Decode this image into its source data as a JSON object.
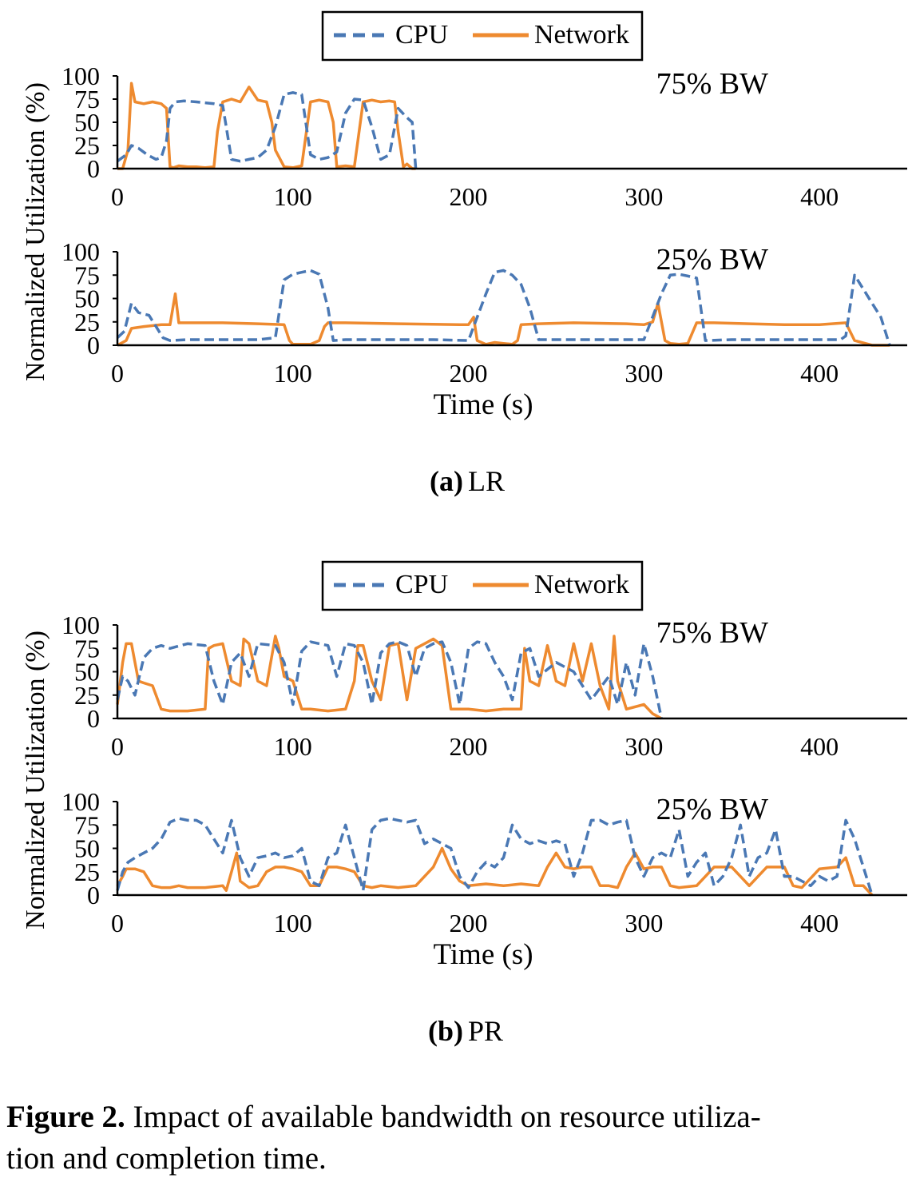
{
  "figure": {
    "caption_label": "Figure 2.",
    "caption_text": "Impact of available bandwidth on resource utilization and completion time.",
    "caption_line1": "Impact of available bandwidth on resource utiliza-",
    "caption_line2": "tion and completion time."
  },
  "colors": {
    "cpu": "#4A78B4",
    "network": "#EE8A2F"
  },
  "panels": [
    {
      "label": "(a)",
      "name": "LR",
      "legend": [
        "CPU",
        "Network"
      ],
      "ylabel": "Normalized Utilization (%)",
      "xlabel": "Time (s)"
    },
    {
      "label": "(b)",
      "name": "PR",
      "legend": [
        "CPU",
        "Network"
      ],
      "ylabel": "Normalized Utilization (%)",
      "xlabel": "Time (s)"
    }
  ],
  "chart_data": [
    {
      "type": "line",
      "panel": "(a) LR",
      "annotation": "75% BW",
      "xlim": [
        0,
        450
      ],
      "ylim": [
        0,
        100
      ],
      "xticks": [
        0,
        100,
        200,
        300,
        400
      ],
      "yticks": [
        0,
        25,
        50,
        75,
        100
      ],
      "grid": false,
      "legend_position": "top-center",
      "series": [
        {
          "name": "CPU",
          "style": "dashed",
          "x": [
            0,
            5,
            8,
            12,
            17,
            22,
            25,
            28,
            30,
            33,
            38,
            45,
            55,
            60,
            62,
            65,
            70,
            75,
            80,
            85,
            90,
            95,
            100,
            105,
            110,
            115,
            120,
            125,
            130,
            135,
            140,
            145,
            150,
            155,
            160,
            165,
            168,
            170
          ],
          "y": [
            8,
            15,
            25,
            22,
            15,
            10,
            12,
            30,
            65,
            72,
            73,
            72,
            70,
            68,
            45,
            10,
            8,
            10,
            12,
            20,
            45,
            80,
            82,
            80,
            15,
            10,
            12,
            18,
            60,
            75,
            74,
            45,
            10,
            15,
            65,
            55,
            50,
            0
          ]
        },
        {
          "name": "Network",
          "style": "solid",
          "x": [
            0,
            3,
            6,
            8,
            10,
            15,
            20,
            25,
            28,
            30,
            32,
            35,
            40,
            45,
            50,
            55,
            57,
            60,
            65,
            70,
            75,
            80,
            85,
            88,
            90,
            95,
            100,
            105,
            110,
            115,
            120,
            123,
            125,
            130,
            135,
            140,
            145,
            150,
            155,
            158,
            160,
            163,
            165,
            168,
            170
          ],
          "y": [
            0,
            0,
            20,
            92,
            72,
            70,
            72,
            70,
            65,
            2,
            1,
            3,
            2,
            2,
            1,
            2,
            40,
            72,
            75,
            72,
            88,
            74,
            72,
            50,
            20,
            2,
            1,
            3,
            72,
            74,
            72,
            50,
            2,
            3,
            2,
            72,
            74,
            72,
            73,
            72,
            40,
            2,
            5,
            0,
            0
          ]
        }
      ]
    },
    {
      "type": "line",
      "panel": "(a) LR",
      "annotation": "25% BW",
      "xlim": [
        0,
        450
      ],
      "ylim": [
        0,
        100
      ],
      "xticks": [
        0,
        100,
        200,
        300,
        400
      ],
      "yticks": [
        0,
        25,
        50,
        75,
        100
      ],
      "grid": false,
      "series": [
        {
          "name": "CPU",
          "style": "dashed",
          "x": [
            0,
            4,
            8,
            12,
            18,
            22,
            26,
            30,
            40,
            60,
            80,
            90,
            95,
            100,
            105,
            110,
            115,
            120,
            123,
            130,
            150,
            180,
            200,
            210,
            215,
            220,
            225,
            230,
            235,
            240,
            260,
            280,
            300,
            310,
            315,
            320,
            325,
            330,
            335,
            350,
            380,
            400,
            412,
            415,
            420,
            425,
            430,
            435,
            440
          ],
          "y": [
            8,
            15,
            45,
            35,
            32,
            20,
            8,
            5,
            6,
            6,
            6,
            8,
            70,
            76,
            78,
            80,
            76,
            40,
            5,
            6,
            6,
            6,
            5,
            55,
            78,
            80,
            75,
            65,
            40,
            6,
            6,
            6,
            6,
            55,
            75,
            76,
            74,
            72,
            5,
            6,
            6,
            6,
            6,
            10,
            75,
            60,
            45,
            30,
            0
          ]
        },
        {
          "name": "Network",
          "style": "solid",
          "x": [
            0,
            5,
            8,
            15,
            25,
            30,
            33,
            35,
            40,
            60,
            80,
            95,
            98,
            100,
            110,
            115,
            118,
            120,
            130,
            160,
            195,
            200,
            203,
            205,
            210,
            215,
            220,
            225,
            228,
            230,
            240,
            260,
            290,
            300,
            305,
            308,
            310,
            312,
            315,
            320,
            325,
            330,
            340,
            360,
            380,
            400,
            415,
            420,
            430,
            440
          ],
          "y": [
            0,
            5,
            18,
            20,
            22,
            22,
            55,
            24,
            24,
            24,
            23,
            22,
            5,
            1,
            1,
            5,
            20,
            24,
            24,
            23,
            22,
            22,
            30,
            5,
            1,
            3,
            2,
            1,
            5,
            22,
            23,
            24,
            23,
            22,
            25,
            45,
            25,
            5,
            2,
            1,
            2,
            24,
            24,
            23,
            22,
            22,
            24,
            5,
            0,
            0
          ]
        }
      ]
    },
    {
      "type": "line",
      "panel": "(b) PR",
      "annotation": "75% BW",
      "xlim": [
        0,
        450
      ],
      "ylim": [
        0,
        100
      ],
      "xticks": [
        0,
        100,
        200,
        300,
        400
      ],
      "yticks": [
        0,
        25,
        50,
        75,
        100
      ],
      "grid": false,
      "legend_position": "top-center",
      "series": [
        {
          "name": "CPU",
          "style": "dashed",
          "x": [
            0,
            3,
            6,
            10,
            15,
            20,
            25,
            30,
            40,
            50,
            55,
            60,
            65,
            70,
            75,
            80,
            90,
            95,
            100,
            105,
            110,
            115,
            120,
            125,
            130,
            135,
            140,
            145,
            150,
            155,
            160,
            165,
            170,
            175,
            180,
            185,
            190,
            195,
            200,
            205,
            210,
            215,
            220,
            225,
            230,
            235,
            240,
            250,
            260,
            270,
            280,
            285,
            290,
            295,
            300,
            305,
            310
          ],
          "y": [
            20,
            45,
            40,
            25,
            65,
            75,
            78,
            75,
            80,
            78,
            40,
            15,
            60,
            70,
            45,
            80,
            78,
            60,
            15,
            72,
            82,
            80,
            78,
            45,
            80,
            78,
            60,
            15,
            70,
            80,
            82,
            78,
            45,
            75,
            80,
            82,
            60,
            15,
            75,
            82,
            80,
            60,
            45,
            20,
            70,
            75,
            45,
            60,
            50,
            20,
            45,
            15,
            60,
            25,
            80,
            45,
            0
          ]
        },
        {
          "name": "Network",
          "style": "solid",
          "x": [
            0,
            3,
            5,
            8,
            10,
            12,
            15,
            20,
            25,
            30,
            40,
            50,
            52,
            55,
            60,
            65,
            70,
            72,
            75,
            80,
            85,
            90,
            92,
            95,
            100,
            105,
            110,
            120,
            130,
            135,
            137,
            140,
            145,
            150,
            155,
            160,
            165,
            170,
            175,
            180,
            185,
            190,
            200,
            210,
            220,
            230,
            232,
            235,
            240,
            245,
            250,
            255,
            260,
            265,
            270,
            275,
            280,
            283,
            285,
            290,
            300,
            305,
            310
          ],
          "y": [
            15,
            60,
            80,
            80,
            60,
            40,
            38,
            35,
            10,
            8,
            8,
            10,
            75,
            78,
            80,
            40,
            35,
            85,
            80,
            40,
            35,
            88,
            75,
            45,
            40,
            10,
            10,
            8,
            10,
            40,
            78,
            78,
            40,
            20,
            78,
            80,
            20,
            75,
            80,
            85,
            78,
            10,
            10,
            8,
            10,
            10,
            75,
            40,
            35,
            78,
            40,
            35,
            80,
            40,
            80,
            35,
            10,
            88,
            40,
            10,
            15,
            5,
            0
          ]
        }
      ]
    },
    {
      "type": "line",
      "panel": "(b) PR",
      "annotation": "25% BW",
      "xlim": [
        0,
        450
      ],
      "ylim": [
        0,
        100
      ],
      "xticks": [
        0,
        100,
        200,
        300,
        400
      ],
      "yticks": [
        0,
        25,
        50,
        75,
        100
      ],
      "grid": false,
      "series": [
        {
          "name": "CPU",
          "style": "dashed",
          "x": [
            0,
            3,
            6,
            10,
            15,
            20,
            25,
            30,
            35,
            40,
            45,
            50,
            55,
            60,
            65,
            70,
            75,
            80,
            85,
            90,
            95,
            100,
            105,
            110,
            115,
            120,
            125,
            130,
            135,
            140,
            145,
            150,
            155,
            160,
            165,
            170,
            175,
            180,
            185,
            190,
            195,
            200,
            205,
            210,
            215,
            220,
            225,
            230,
            235,
            240,
            245,
            250,
            255,
            260,
            265,
            270,
            275,
            280,
            285,
            290,
            295,
            300,
            305,
            310,
            315,
            320,
            325,
            330,
            335,
            340,
            345,
            350,
            355,
            360,
            365,
            370,
            375,
            380,
            385,
            390,
            395,
            400,
            405,
            410,
            415,
            420,
            425,
            430
          ],
          "y": [
            5,
            25,
            35,
            40,
            45,
            50,
            60,
            78,
            82,
            80,
            80,
            75,
            60,
            45,
            80,
            40,
            20,
            40,
            42,
            45,
            40,
            42,
            50,
            15,
            10,
            40,
            45,
            75,
            40,
            5,
            70,
            80,
            82,
            80,
            78,
            80,
            55,
            60,
            55,
            50,
            20,
            8,
            25,
            35,
            30,
            40,
            75,
            60,
            55,
            58,
            55,
            58,
            55,
            20,
            45,
            80,
            80,
            75,
            78,
            80,
            40,
            20,
            40,
            45,
            40,
            70,
            20,
            35,
            45,
            10,
            20,
            40,
            75,
            20,
            40,
            45,
            70,
            20,
            20,
            15,
            10,
            20,
            15,
            20,
            80,
            60,
            30,
            0
          ]
        },
        {
          "name": "Network",
          "style": "solid",
          "x": [
            0,
            3,
            5,
            10,
            15,
            20,
            25,
            30,
            35,
            40,
            50,
            60,
            62,
            65,
            68,
            70,
            75,
            80,
            85,
            90,
            95,
            100,
            105,
            110,
            115,
            120,
            125,
            130,
            135,
            140,
            145,
            150,
            160,
            170,
            180,
            185,
            190,
            195,
            200,
            210,
            220,
            230,
            240,
            245,
            250,
            255,
            260,
            265,
            270,
            275,
            280,
            285,
            290,
            295,
            300,
            305,
            310,
            315,
            320,
            330,
            340,
            350,
            360,
            370,
            380,
            385,
            390,
            400,
            410,
            415,
            420,
            425,
            430
          ],
          "y": [
            10,
            20,
            28,
            28,
            25,
            10,
            8,
            8,
            10,
            8,
            8,
            10,
            5,
            25,
            45,
            15,
            8,
            10,
            25,
            30,
            30,
            28,
            25,
            10,
            10,
            30,
            30,
            28,
            25,
            10,
            8,
            10,
            8,
            10,
            30,
            50,
            28,
            15,
            10,
            12,
            10,
            12,
            10,
            30,
            45,
            30,
            28,
            30,
            30,
            10,
            10,
            8,
            30,
            45,
            28,
            30,
            30,
            10,
            8,
            10,
            30,
            30,
            10,
            30,
            30,
            10,
            8,
            28,
            30,
            40,
            10,
            10,
            0
          ]
        }
      ]
    }
  ]
}
